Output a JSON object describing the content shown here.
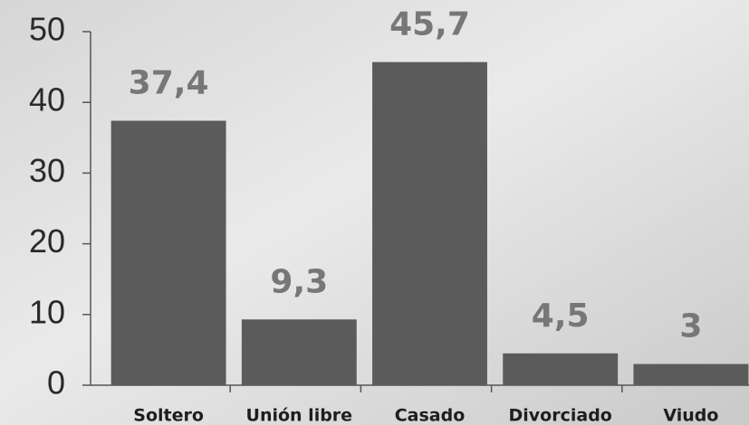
{
  "chart_data": {
    "type": "bar",
    "categories": [
      "Soltero",
      "Unión libre",
      "Casado",
      "Divorciado",
      "Viudo"
    ],
    "values": [
      37.4,
      9.3,
      45.7,
      4.5,
      3
    ],
    "value_labels": [
      "37,4",
      "9,3",
      "45,7",
      "4,5",
      "3"
    ],
    "color": "#5b5b5b",
    "ylim": [
      0,
      50
    ],
    "yticks": [
      0,
      10,
      20,
      30,
      40,
      50
    ],
    "grid": false
  }
}
